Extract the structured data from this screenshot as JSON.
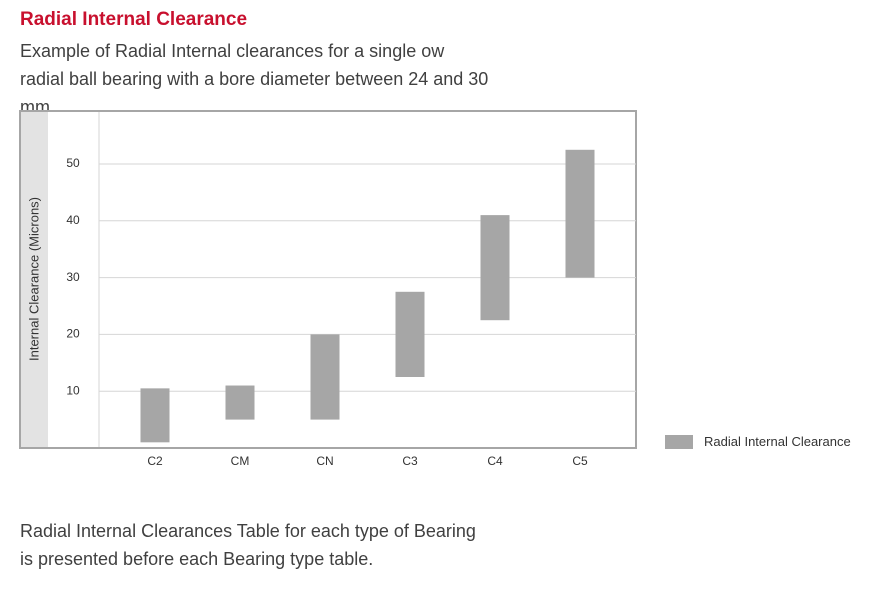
{
  "header": {
    "title": "Radial Internal Clearance",
    "subtitle": "Example of Radial Internal clearances for a single ow radial ball bearing with a bore diameter between 24 and 30 mm."
  },
  "footer": {
    "text": "Radial Internal Clearances Table for each type of Bearing is presented before each Bearing type table."
  },
  "chart_data": {
    "type": "bar",
    "subtype": "floating-range",
    "ylabel": "Internal Clearance (Microns)",
    "xlabel": "",
    "categories": [
      "C2",
      "CM",
      "CN",
      "C3",
      "C4",
      "C5"
    ],
    "series": [
      {
        "name": "Radial Internal Clearance",
        "color": "#a6a6a6",
        "ranges": [
          [
            1,
            10.5
          ],
          [
            5,
            11
          ],
          [
            5,
            20
          ],
          [
            12.5,
            27.5
          ],
          [
            22.5,
            41
          ],
          [
            30,
            52.5
          ]
        ]
      }
    ],
    "yticks": [
      10,
      20,
      30,
      40,
      50
    ],
    "ylim": [
      0,
      60
    ],
    "grid": true,
    "legend": "right"
  }
}
